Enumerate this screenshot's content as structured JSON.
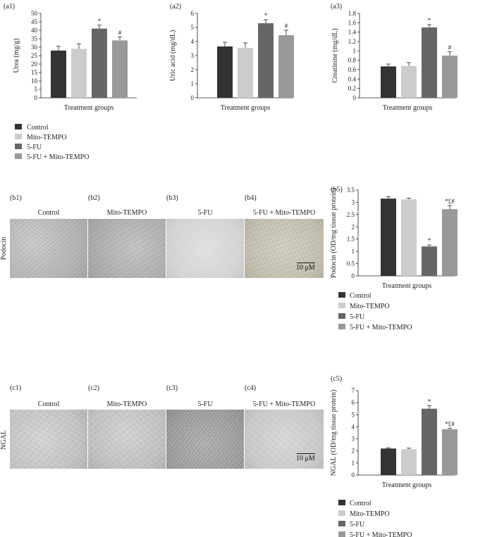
{
  "legend_labels": [
    "Control",
    "Mito-TEMPO",
    "5-FU",
    "5-FU + Mito-TEMPO"
  ],
  "colors": {
    "bars": [
      "#333333",
      "#cccccc",
      "#666666",
      "#999999"
    ],
    "axis": "#222222",
    "text": "#222222"
  },
  "row_b": {
    "panel_labels": [
      "(b1)",
      "(b2)",
      "(b3)",
      "(b4)"
    ],
    "titles": [
      "Control",
      "Mito-TEMPO",
      "5-FU",
      "5-FU + Mito-TEMPO"
    ],
    "stain": "Podocin",
    "scale_bar": "10 μM"
  },
  "row_c": {
    "panel_labels": [
      "(c1)",
      "(c2)",
      "(c3)",
      "(c4)"
    ],
    "titles": [
      "Control",
      "Mito-TEMPO",
      "5-FU",
      "5-FU + Mito-TEMPO"
    ],
    "stain": "NGAL",
    "scale_bar": "10 μM"
  },
  "chart_data": [
    {
      "id": "a1",
      "panel_label": "(a1)",
      "type": "bar",
      "categories": [
        "Control",
        "Mito-TEMPO",
        "5-FU",
        "5-FU + Mito-TEMPO"
      ],
      "values": [
        28,
        29,
        41,
        34
      ],
      "errors": [
        2.5,
        3,
        2,
        2
      ],
      "annotations": [
        "",
        "",
        "*",
        "#"
      ],
      "xlabel": "Treatment groups",
      "ylabel": "Urea (mg/g)",
      "ylim": [
        0,
        50
      ],
      "yticks": [
        0,
        5,
        10,
        15,
        20,
        25,
        30,
        35,
        40,
        45,
        50
      ]
    },
    {
      "id": "a2",
      "panel_label": "(a2)",
      "type": "bar",
      "categories": [
        "Control",
        "Mito-TEMPO",
        "5-FU",
        "5-FU + Mito-TEMPO"
      ],
      "values": [
        3.65,
        3.55,
        5.3,
        4.45
      ],
      "errors": [
        0.3,
        0.35,
        0.25,
        0.35
      ],
      "annotations": [
        "",
        "",
        "*",
        "#"
      ],
      "xlabel": "Treatment groups",
      "ylabel": "Uric acid (mg/dL)",
      "ylim": [
        0,
        6
      ],
      "yticks": [
        0,
        1,
        2,
        3,
        4,
        5,
        6
      ]
    },
    {
      "id": "a3",
      "panel_label": "(a3)",
      "type": "bar",
      "categories": [
        "Control",
        "Mito-TEMPO",
        "5-FU",
        "5-FU + Mito-TEMPO"
      ],
      "values": [
        0.67,
        0.68,
        1.5,
        0.9
      ],
      "errors": [
        0.05,
        0.07,
        0.06,
        0.08
      ],
      "annotations": [
        "",
        "",
        "*",
        "#"
      ],
      "xlabel": "Treatment groups",
      "ylabel": "Creatinine (mg/dL)",
      "ylim": [
        0,
        1.8
      ],
      "yticks": [
        0,
        0.2,
        0.4,
        0.6,
        0.8,
        1,
        1.2,
        1.4,
        1.6,
        1.8
      ]
    },
    {
      "id": "b5",
      "panel_label": "(b5)",
      "type": "bar",
      "categories": [
        "Control",
        "Mito-TEMPO",
        "5-FU",
        "5-FU + Mito-TEMPO"
      ],
      "values": [
        3.15,
        3.12,
        1.2,
        2.72
      ],
      "errors": [
        0.08,
        0.05,
        0.06,
        0.15
      ],
      "annotations": [
        "",
        "",
        "*",
        "*£#"
      ],
      "xlabel": "Treatment groups",
      "ylabel": "Podocin (OD/mg tissue protein)",
      "ylim": [
        0,
        3.5
      ],
      "yticks": [
        0,
        0.5,
        1,
        1.5,
        2,
        2.5,
        3,
        3.5
      ]
    },
    {
      "id": "c5",
      "panel_label": "(c5)",
      "type": "bar",
      "categories": [
        "Control",
        "Mito-TEMPO",
        "5-FU",
        "5-FU + Mito-TEMPO"
      ],
      "values": [
        2.2,
        2.15,
        5.5,
        3.8
      ],
      "errors": [
        0.06,
        0.08,
        0.25,
        0.08
      ],
      "annotations": [
        "",
        "",
        "*",
        "*£#"
      ],
      "xlabel": "Treatment groups",
      "ylabel": "NGAL (OD/mg tissue protein)",
      "ylim": [
        0,
        7
      ],
      "yticks": [
        0,
        1,
        2,
        3,
        4,
        5,
        6,
        7
      ]
    }
  ]
}
